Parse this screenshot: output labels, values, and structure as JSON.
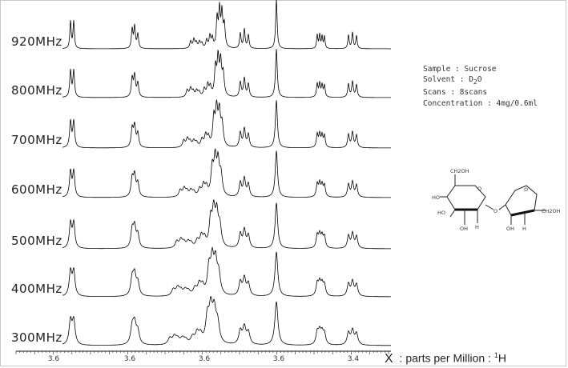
{
  "chart_data": {
    "type": "line",
    "title": "",
    "xlabel_prefix": "X",
    "xlabel": "parts per Million",
    "xlabel_nucleus_mass": "1",
    "xlabel_nucleus": "H",
    "x_tick_labels": [
      "3.6",
      "3.6",
      "3.6",
      "3.6",
      "3.4"
    ],
    "xlim": [
      5.7,
      3.2
    ],
    "series": [
      {
        "name": "920MHz",
        "field_mhz": 920
      },
      {
        "name": "800MHz",
        "field_mhz": 800
      },
      {
        "name": "700MHz",
        "field_mhz": 700
      },
      {
        "name": "600MHz",
        "field_mhz": 600
      },
      {
        "name": "500MHz",
        "field_mhz": 500
      },
      {
        "name": "400MHz",
        "field_mhz": 400
      },
      {
        "name": "300MHz",
        "field_mhz": 300
      }
    ],
    "line_color": "#000000"
  },
  "sample_info": {
    "sample": "Sample : Sucrose",
    "solvent_prefix": "Solvent : D",
    "solvent_sub": "2",
    "solvent_suffix": "O",
    "scans": "Scans : 8scans",
    "concentration": "Concentration : 4mg/0.6ml"
  },
  "structure_labels": {
    "ch2oh_top": "CH2OH",
    "ch2oh_right": "CH2OH",
    "ho_left": "HO",
    "ho_ring": "HO",
    "oh_bottom_left": "OH",
    "oh_bottom_right": "OH",
    "h": "H",
    "o": "O"
  }
}
